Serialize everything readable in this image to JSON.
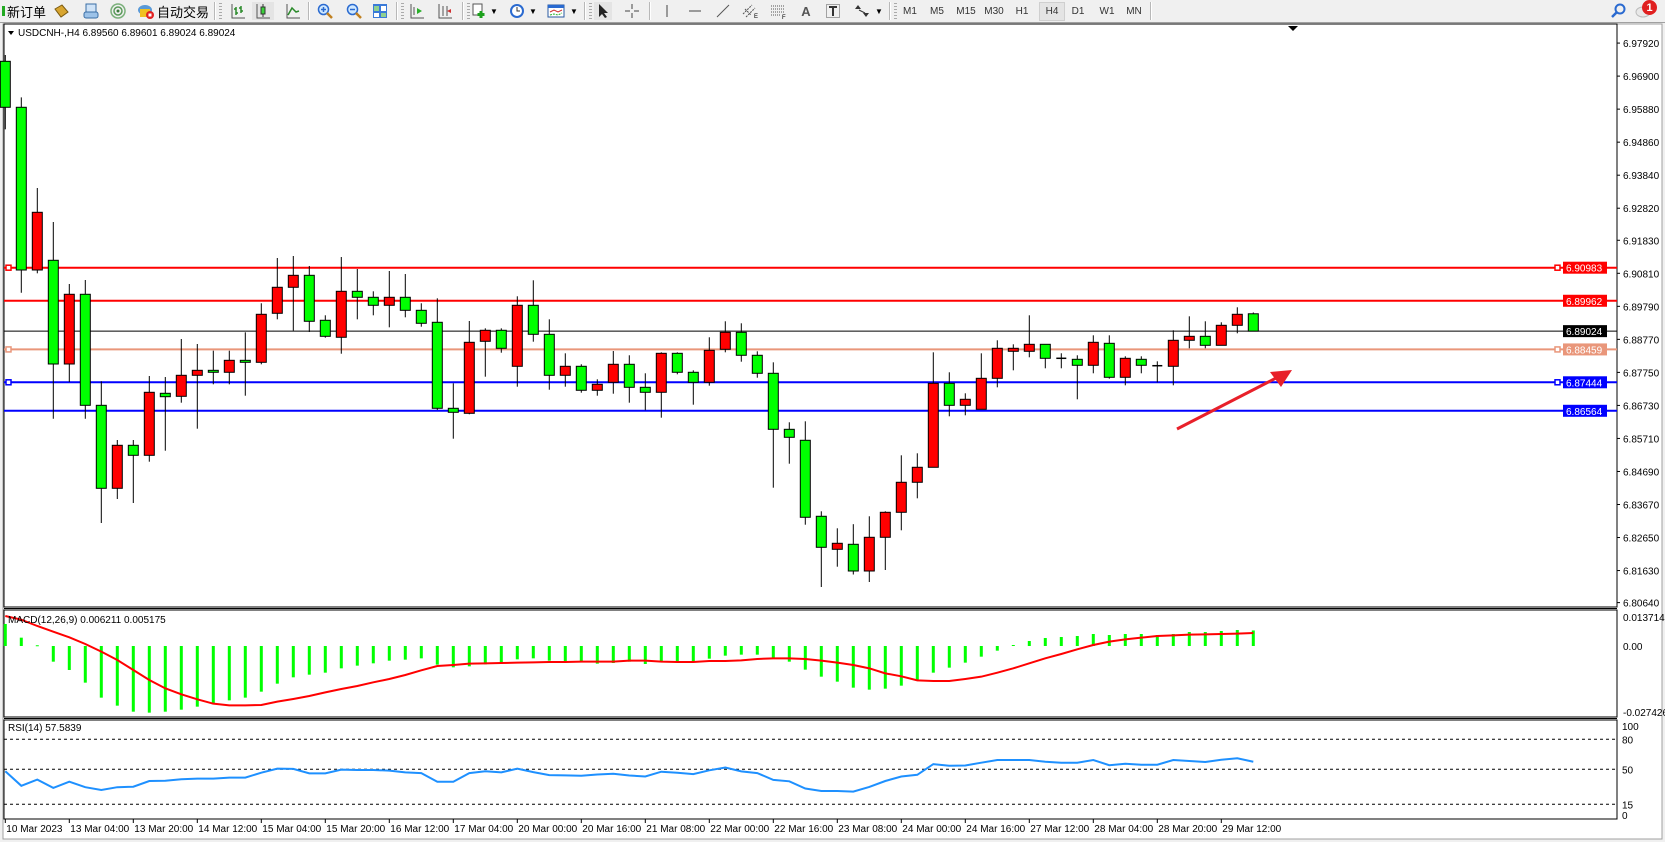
{
  "toolbar": {
    "new_order": "新订单",
    "auto_trading": "自动交易",
    "icons": [
      "new-order-icon",
      "market-watch-icon",
      "data-window-icon",
      "signals-icon",
      "auto-trading-icon",
      "bar-chart-icon",
      "candlestick-icon",
      "line-chart-icon",
      "zoom-in-icon",
      "zoom-out-icon",
      "tile-windows-icon",
      "auto-scroll-icon",
      "chart-shift-icon",
      "indicators-icon",
      "periods-icon",
      "templates-icon",
      "cursor-icon",
      "crosshair-icon",
      "vertical-line-icon",
      "horizontal-line-icon",
      "trendline-icon",
      "equidistant-channel-icon",
      "fibonacci-icon",
      "text-icon",
      "text-label-icon",
      "arrows-icon",
      "search-icon",
      "chat-icon"
    ],
    "timeframes": [
      "M1",
      "M5",
      "M15",
      "M30",
      "H1",
      "H4",
      "D1",
      "W1",
      "MN"
    ],
    "active_timeframe": "H4",
    "notification_count": "1"
  },
  "chart": {
    "header": "USDCNH-,H4  6.89560 6.89601 6.89024 6.89024",
    "current_price": "6.89024",
    "price_axis_labels": [
      "6.97920",
      "6.96900",
      "6.95880",
      "6.94860",
      "6.93840",
      "6.92820",
      "6.91830",
      "6.90810",
      "6.89790",
      "6.88770",
      "6.87750",
      "6.86730",
      "6.85710",
      "6.84690",
      "6.83670",
      "6.82650",
      "6.81630",
      "6.80640"
    ],
    "hlines": [
      {
        "price": 6.90983,
        "label": "6.90983",
        "color": "#ff0000"
      },
      {
        "price": 6.89962,
        "label": "6.89962",
        "color": "#ff0000"
      },
      {
        "price": 6.88459,
        "label": "6.88459",
        "color": "#e9967a"
      },
      {
        "price": 6.87444,
        "label": "6.87444",
        "color": "#0000ff"
      },
      {
        "price": 6.86564,
        "label": "6.86564",
        "color": "#0000ff"
      }
    ],
    "time_labels": [
      "10 Mar 2023",
      "13 Mar 04:00",
      "13 Mar 20:00",
      "14 Mar 12:00",
      "15 Mar 04:00",
      "15 Mar 20:00",
      "16 Mar 12:00",
      "17 Mar 04:00",
      "20 Mar 00:00",
      "20 Mar 16:00",
      "21 Mar 08:00",
      "22 Mar 00:00",
      "22 Mar 16:00",
      "23 Mar 08:00",
      "24 Mar 00:00",
      "24 Mar 16:00",
      "27 Mar 12:00",
      "28 Mar 04:00",
      "28 Mar 20:00",
      "29 Mar 12:00"
    ],
    "macd_header": "MACD(12,26,9) 0.006211 0.005175",
    "macd_axis_labels": [
      "0.013714",
      "0.00",
      "-0.027426"
    ],
    "rsi_header": "RSI(14) 57.5839",
    "rsi_axis_labels": [
      "100",
      "80",
      "50",
      "15",
      "0"
    ]
  },
  "colors": {
    "bull_candle": "#ff0000",
    "bear_candle": "#00ff00",
    "macd_histogram": "#00ff00",
    "macd_signal": "#ff0000",
    "rsi_line": "#1e90ff",
    "annotation_arrow": "#e8202a"
  },
  "chart_data": [
    {
      "type": "candlestick",
      "symbol": "USDCNH-",
      "timeframe": "H4",
      "ohlc_order": [
        "open",
        "high",
        "low",
        "close"
      ],
      "ylim": [
        6.8064,
        6.9792
      ],
      "ohlc": [
        [
          6.97357,
          6.97552,
          6.95257,
          6.95937
        ],
        [
          6.95937,
          6.96245,
          6.90211,
          6.90912
        ],
        [
          6.90912,
          6.93444,
          6.9081,
          6.92694
        ],
        [
          6.91212,
          6.92394,
          6.8632,
          6.88009
        ],
        [
          6.88009,
          6.9048,
          6.87453,
          6.90162
        ],
        [
          6.90162,
          6.90603,
          6.8632,
          6.86733
        ],
        [
          6.86733,
          6.87475,
          6.83099,
          6.8417
        ],
        [
          6.8417,
          6.85662,
          6.8384,
          6.85498
        ],
        [
          6.85498,
          6.85662,
          6.83716,
          6.85189
        ],
        [
          6.85189,
          6.87638,
          6.84992,
          6.87135
        ],
        [
          6.87104,
          6.87607,
          6.85331,
          6.86999
        ],
        [
          6.87011,
          6.88781,
          6.86814,
          6.8766
        ],
        [
          6.8766,
          6.88627,
          6.86011,
          6.87814
        ],
        [
          6.87814,
          6.8842,
          6.87382,
          6.87753
        ],
        [
          6.87753,
          6.8842,
          6.87382,
          6.88123
        ],
        [
          6.88123,
          6.88988,
          6.8703,
          6.88061
        ],
        [
          6.88061,
          6.89884,
          6.88,
          6.89544
        ],
        [
          6.89575,
          6.91283,
          6.89389,
          6.90378
        ],
        [
          6.90378,
          6.91344,
          6.89037,
          6.90748
        ],
        [
          6.90748,
          6.91036,
          6.88997,
          6.89328
        ],
        [
          6.89359,
          6.89513,
          6.88821,
          6.88864
        ],
        [
          6.88834,
          6.91313,
          6.88327,
          6.90254
        ],
        [
          6.90254,
          6.90943,
          6.89389,
          6.90069
        ],
        [
          6.90069,
          6.90254,
          6.89513,
          6.89822
        ],
        [
          6.89822,
          6.90881,
          6.89142,
          6.90069
        ],
        [
          6.90069,
          6.90788,
          6.89451,
          6.89667
        ],
        [
          6.89667,
          6.89884,
          6.89161,
          6.89266
        ],
        [
          6.89297,
          6.90038,
          6.86588,
          6.86641
        ],
        [
          6.86641,
          6.87413,
          6.85702,
          6.86517
        ],
        [
          6.86486,
          6.89337,
          6.86456,
          6.88679
        ],
        [
          6.8871,
          6.89111,
          6.87617,
          6.8905
        ],
        [
          6.8905,
          6.89111,
          6.88358,
          6.88494
        ],
        [
          6.87938,
          6.901,
          6.87308,
          6.89822
        ],
        [
          6.89822,
          6.90594,
          6.88698,
          6.88926
        ],
        [
          6.88926,
          6.89389,
          6.87215,
          6.8766
        ],
        [
          6.8766,
          6.88339,
          6.87308,
          6.87938
        ],
        [
          6.87938,
          6.88,
          6.87123,
          6.87197
        ],
        [
          6.87197,
          6.87536,
          6.8703,
          6.87382
        ],
        [
          6.87444,
          6.8841,
          6.87092,
          6.88
        ],
        [
          6.88,
          6.88278,
          6.86814,
          6.87289
        ],
        [
          6.87289,
          6.87722,
          6.86579,
          6.87135
        ],
        [
          6.87135,
          6.8837,
          6.86351,
          6.88339
        ],
        [
          6.88339,
          6.8837,
          6.87691,
          6.87753
        ],
        [
          6.87753,
          6.87814,
          6.86752,
          6.87444
        ],
        [
          6.87444,
          6.88834,
          6.87339,
          6.88432
        ],
        [
          6.88463,
          6.89328,
          6.8837,
          6.88988
        ],
        [
          6.88988,
          6.89266,
          6.8808,
          6.88278
        ],
        [
          6.88278,
          6.88401,
          6.87586,
          6.87722
        ],
        [
          6.87722,
          6.88061,
          6.84189,
          6.85992
        ],
        [
          6.85992,
          6.86209,
          6.8493,
          6.85745
        ],
        [
          6.85653,
          6.86239,
          6.83046,
          6.83275
        ],
        [
          6.83306,
          6.8346,
          6.81122,
          6.82348
        ],
        [
          6.82286,
          6.82935,
          6.81749,
          6.82472
        ],
        [
          6.82441,
          6.83062,
          6.81508,
          6.81616
        ],
        [
          6.81616,
          6.83306,
          6.81276,
          6.82657
        ],
        [
          6.82657,
          6.8346,
          6.81647,
          6.83429
        ],
        [
          6.83429,
          6.85189,
          6.82873,
          6.84356
        ],
        [
          6.84356,
          6.85251,
          6.83861,
          6.84819
        ],
        [
          6.84819,
          6.8837,
          6.84819,
          6.87413
        ],
        [
          6.87413,
          6.87753,
          6.86394,
          6.86733
        ],
        [
          6.86733,
          6.87104,
          6.86425,
          6.86919
        ],
        [
          6.8661,
          6.88339,
          6.8661,
          6.87567
        ],
        [
          6.87567,
          6.88741,
          6.87289,
          6.88494
        ],
        [
          6.88401,
          6.88617,
          6.87814,
          6.88494
        ],
        [
          6.88401,
          6.89513,
          6.88216,
          6.88617
        ],
        [
          6.88617,
          6.88617,
          6.87876,
          6.88185
        ],
        [
          6.88185,
          6.8834,
          6.87876,
          6.88185
        ],
        [
          6.88154,
          6.88278,
          6.86919,
          6.87969
        ],
        [
          6.87969,
          6.88895,
          6.87722,
          6.88679
        ],
        [
          6.88648,
          6.88895,
          6.87555,
          6.87598
        ],
        [
          6.87598,
          6.88247,
          6.87351,
          6.88185
        ],
        [
          6.88154,
          6.88247,
          6.87722,
          6.87969
        ],
        [
          6.87956,
          6.88092,
          6.87444,
          6.87956
        ],
        [
          6.87938,
          6.8905,
          6.87351,
          6.88741
        ],
        [
          6.88741,
          6.89482,
          6.88494,
          6.88864
        ],
        [
          6.88864,
          6.89328,
          6.88494,
          6.88586
        ],
        [
          6.88586,
          6.89297,
          6.88586,
          6.89204
        ],
        [
          6.89204,
          6.8976,
          6.88957,
          6.89544
        ],
        [
          6.8956,
          6.89601,
          6.89024,
          6.89024
        ]
      ]
    },
    {
      "type": "bar",
      "title": "MACD(12,26,9) 0.006211 0.005175",
      "ylim": [
        -0.027426,
        0.013714
      ],
      "series": [
        {
          "name": "MACD",
          "type": "bar",
          "values": [
            0.00879,
            0.00333,
            0.0003,
            -0.00626,
            -0.00958,
            -0.01464,
            -0.02063,
            -0.02383,
            -0.02623,
            -0.02662,
            -0.02623,
            -0.02543,
            -0.02423,
            -0.0233,
            -0.0217,
            -0.02063,
            -0.01824,
            -0.01504,
            -0.01251,
            -0.01145,
            -0.01065,
            -0.00892,
            -0.00785,
            -0.00692,
            -0.00586,
            -0.00546,
            -0.00493,
            -0.00745,
            -0.00852,
            -0.00812,
            -0.00732,
            -0.00692,
            -0.00532,
            -0.00493,
            -0.00586,
            -0.00599,
            -0.00626,
            -0.00706,
            -0.00679,
            -0.00626,
            -0.00719,
            -0.00599,
            -0.00599,
            -0.00599,
            -0.00506,
            -0.00386,
            -0.00346,
            -0.00346,
            -0.00479,
            -0.00626,
            -0.00945,
            -0.01225,
            -0.01424,
            -0.01664,
            -0.01744,
            -0.01704,
            -0.01584,
            -0.01358,
            -0.01065,
            -0.00865,
            -0.00665,
            -0.00426,
            -0.00186,
            0.0004,
            0.002,
            0.00319,
            0.00359,
            0.00399,
            0.00479,
            0.00439,
            0.00479,
            0.00479,
            0.00439,
            0.00479,
            0.00559,
            0.00559,
            0.00599,
            0.00639,
            0.006211
          ]
        },
        {
          "name": "Signal",
          "type": "line",
          "values": [
            0.01198,
            0.01052,
            0.00799,
            0.00572,
            0.00346,
            0.0008,
            -0.00226,
            -0.00559,
            -0.00958,
            -0.01358,
            -0.01691,
            -0.0193,
            -0.0213,
            -0.02303,
            -0.0237,
            -0.0237,
            -0.02356,
            -0.02223,
            -0.02117,
            -0.01997,
            -0.01851,
            -0.01717,
            -0.01597,
            -0.01451,
            -0.01318,
            -0.01158,
            -0.00972,
            -0.00799,
            -0.00759,
            -0.00706,
            -0.00692,
            -0.00679,
            -0.00666,
            -0.00652,
            -0.00639,
            -0.00639,
            -0.00626,
            -0.00626,
            -0.00626,
            -0.00586,
            -0.00586,
            -0.00626,
            -0.00639,
            -0.00639,
            -0.00599,
            -0.00599,
            -0.00572,
            -0.00519,
            -0.00493,
            -0.00493,
            -0.00519,
            -0.00586,
            -0.00666,
            -0.00759,
            -0.00892,
            -0.01092,
            -0.01211,
            -0.01371,
            -0.01398,
            -0.01398,
            -0.01318,
            -0.01225,
            -0.01065,
            -0.00892,
            -0.00692,
            -0.00493,
            -0.00319,
            -0.00133,
            0.0004,
            0.00173,
            0.00266,
            0.00333,
            0.00399,
            0.00426,
            0.00453,
            0.00466,
            0.00479,
            0.00493,
            0.005175
          ]
        }
      ]
    },
    {
      "type": "line",
      "title": "RSI(14) 57.5839",
      "ylim": [
        0,
        100
      ],
      "levels": [
        80,
        50,
        15
      ],
      "values": [
        48,
        33.5,
        39.7,
        31.4,
        37.6,
        32.1,
        29.3,
        32.1,
        32.6,
        38.3,
        38.6,
        40.1,
        40.7,
        40.7,
        41.7,
        41.7,
        46.6,
        50.7,
        50.4,
        45.9,
        45.9,
        49.7,
        49.3,
        49.3,
        48.7,
        46.9,
        46.2,
        37.6,
        37.6,
        46.2,
        48,
        46.9,
        50.7,
        47.2,
        44.2,
        43.9,
        43.5,
        44.8,
        45.5,
        43.8,
        42.8,
        47.6,
        46.6,
        45.2,
        49,
        51.8,
        47.9,
        46.2,
        39.4,
        38,
        30.8,
        28.3,
        28.3,
        27.7,
        32.4,
        38.3,
        42.8,
        44.5,
        55.2,
        53.5,
        53.8,
        56.6,
        59.3,
        59.3,
        59.3,
        57.6,
        56.6,
        56.6,
        59.3,
        54.1,
        55.6,
        54.6,
        54.6,
        59.3,
        58.3,
        57.3,
        59.5,
        61,
        57.5839
      ]
    }
  ]
}
